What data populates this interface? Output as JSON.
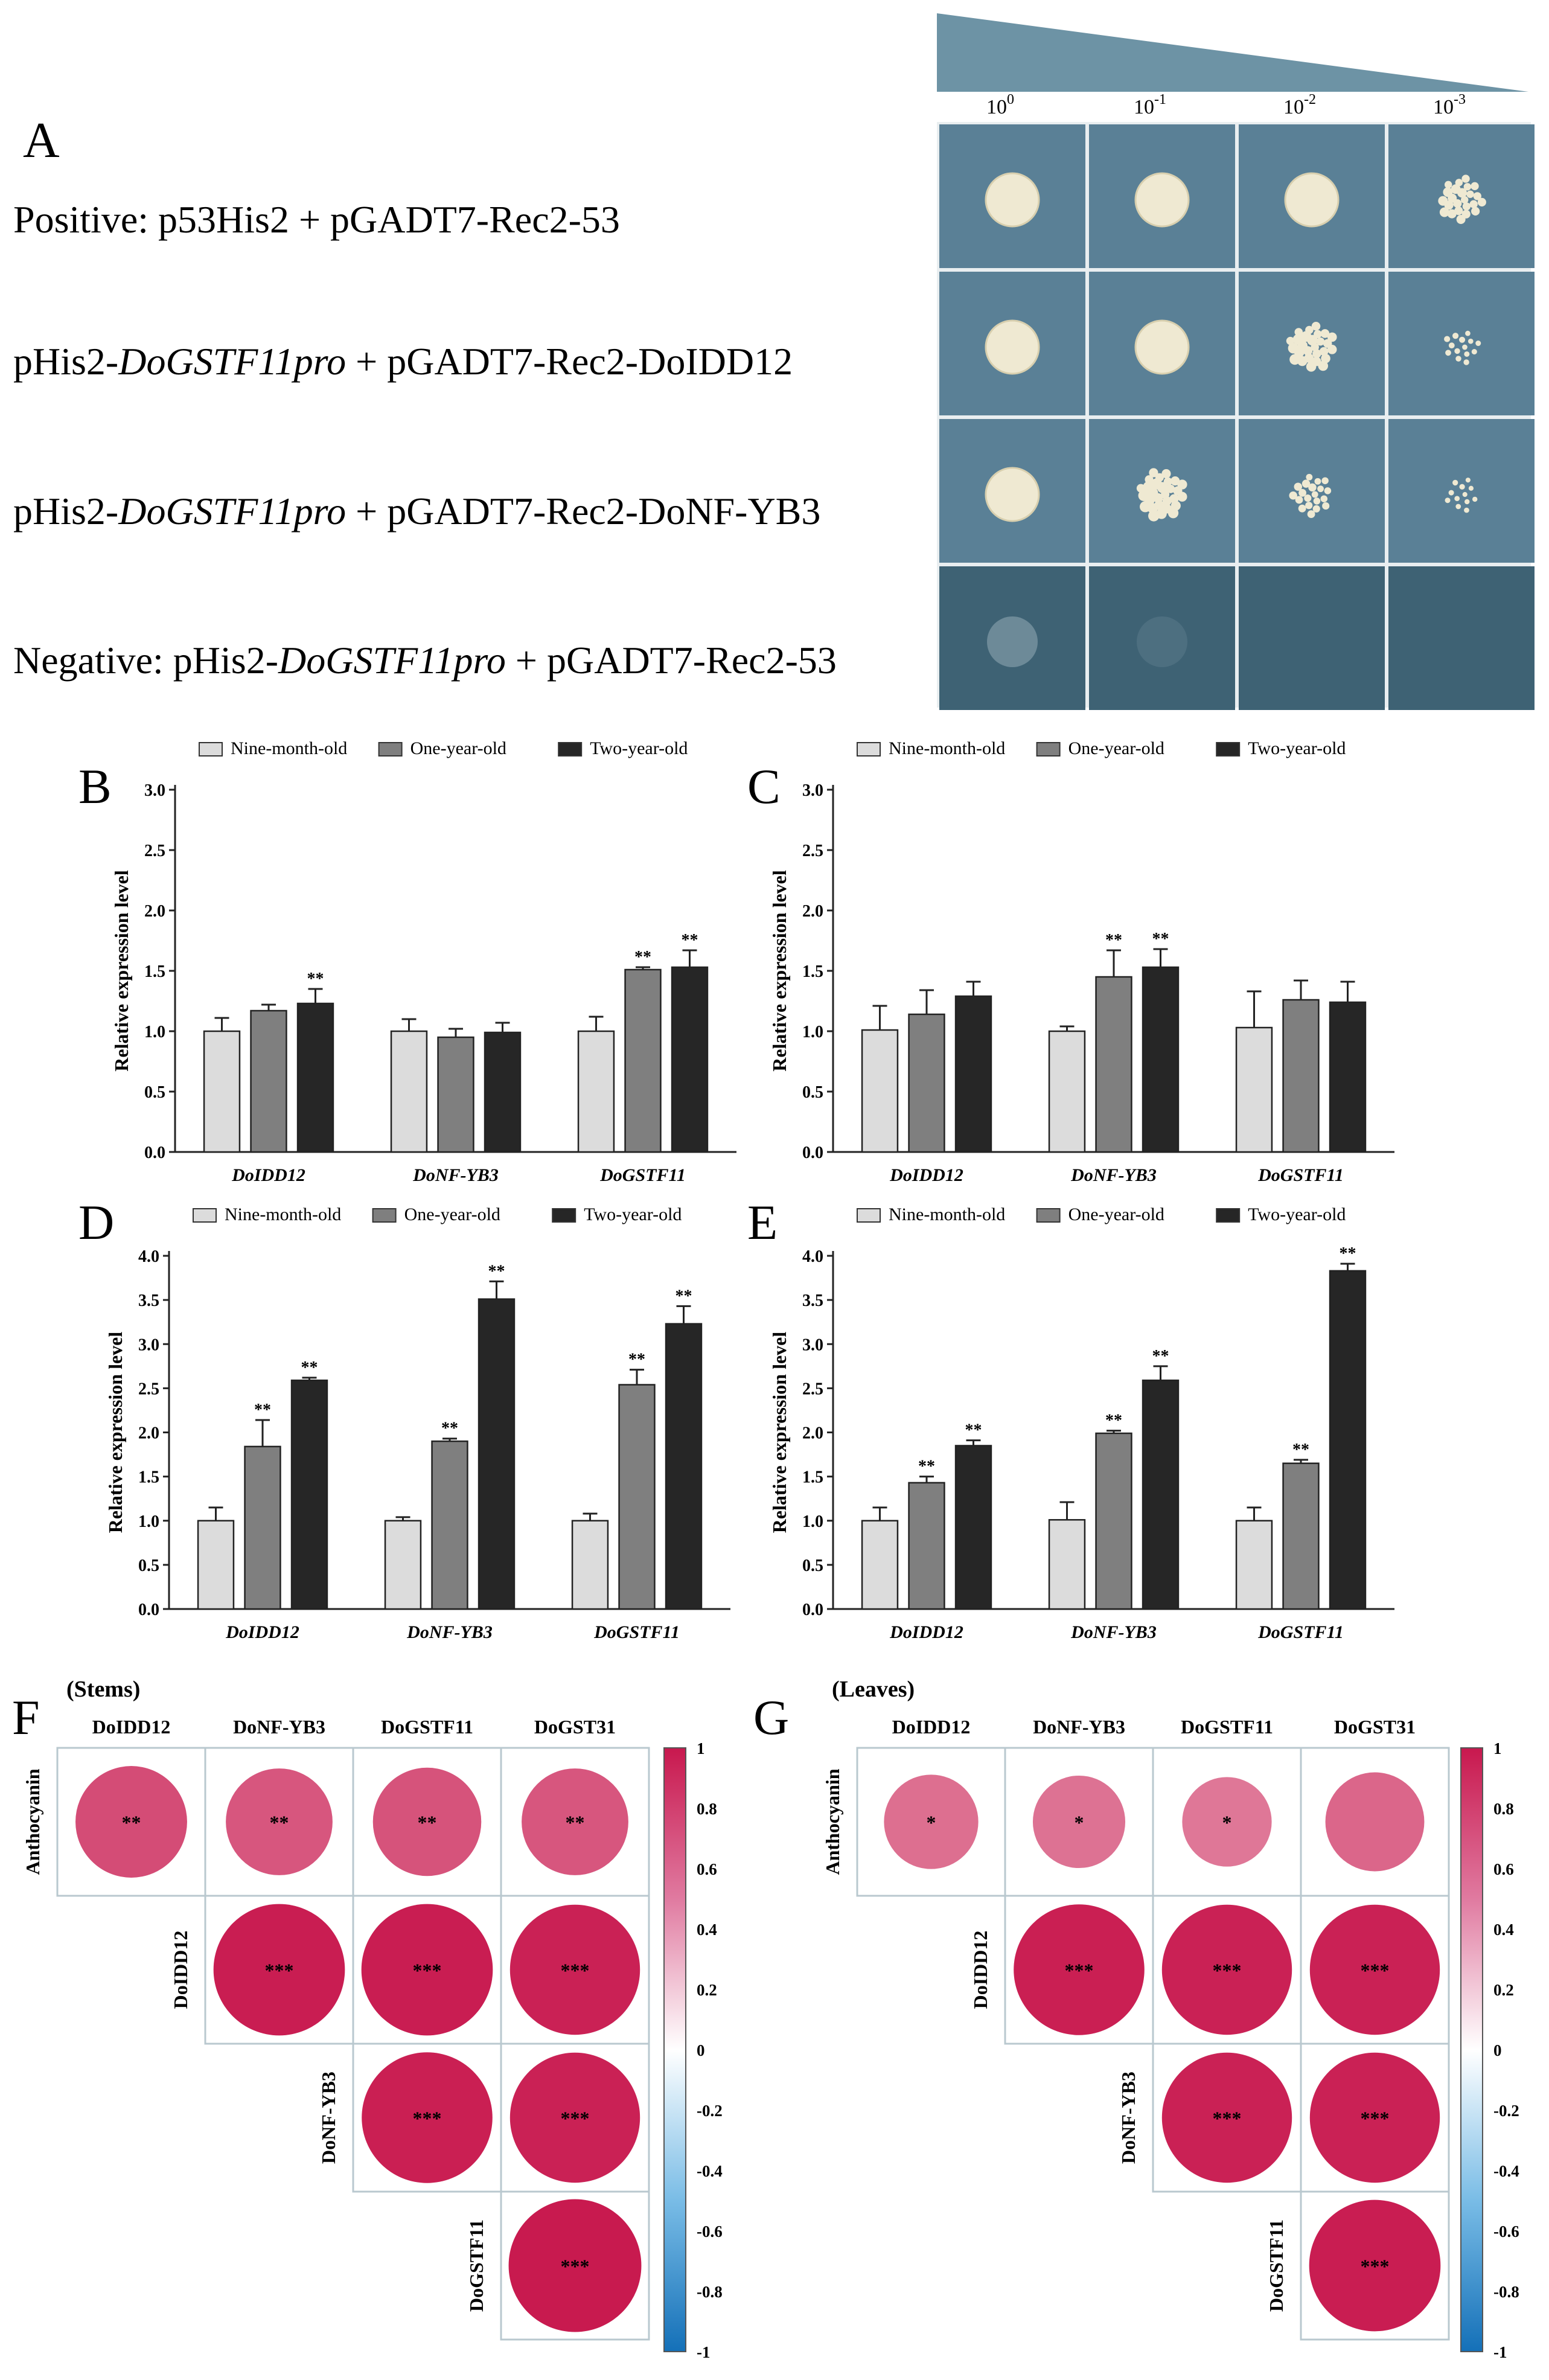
{
  "panelA": {
    "label": "A",
    "dilutions": [
      "10^0",
      "10^-1",
      "10^-2",
      "10^-3"
    ],
    "rows": [
      {
        "pre": "Positive: p53His2 + pGADT7-Rec2-53",
        "ital": "",
        "post": "",
        "growth": [
          1.0,
          0.95,
          0.85,
          0.6
        ]
      },
      {
        "pre": "pHis2-",
        "ital": "DoGSTF11pro",
        "post": " + pGADT7-Rec2-DoIDD12",
        "growth": [
          1.0,
          0.9,
          0.7,
          0.25
        ]
      },
      {
        "pre": "pHis2-",
        "ital": "DoGSTF11pro",
        "post": " + pGADT7-Rec2-DoNF-YB3",
        "growth": [
          0.95,
          0.75,
          0.45,
          0.2
        ]
      },
      {
        "pre": "Negative: pHis2-",
        "ital": "DoGSTF11pro",
        "post": " + pGADT7-Rec2-53",
        "growth": [
          0.15,
          0.05,
          0.0,
          0.0
        ]
      }
    ]
  },
  "chart_data": [
    {
      "panel": "B",
      "type": "bar",
      "ylabel": "Relative expression level",
      "ylim": [
        0,
        3.0
      ],
      "yticks": [
        "0.0",
        "0.5",
        "1.0",
        "1.5",
        "2.0",
        "2.5",
        "3.0"
      ],
      "categories": [
        "DoIDD12",
        "DoNF-YB3",
        "DoGSTF11"
      ],
      "series": [
        {
          "name": "Nine-month-old",
          "values": [
            1.0,
            1.0,
            1.0
          ],
          "err": [
            0.11,
            0.1,
            0.12
          ],
          "sig": [
            "",
            "",
            ""
          ]
        },
        {
          "name": "One-year-old",
          "values": [
            1.17,
            0.95,
            1.51
          ],
          "err": [
            0.05,
            0.07,
            0.02
          ],
          "sig": [
            "",
            "",
            "**"
          ]
        },
        {
          "name": "Two-year-old",
          "values": [
            1.23,
            0.99,
            1.53
          ],
          "err": [
            0.12,
            0.08,
            0.14
          ],
          "sig": [
            "**",
            "",
            "**"
          ]
        }
      ]
    },
    {
      "panel": "C",
      "type": "bar",
      "ylabel": "Relative expression level",
      "ylim": [
        0,
        3.0
      ],
      "yticks": [
        "0.0",
        "0.5",
        "1.0",
        "1.5",
        "2.0",
        "2.5",
        "3.0"
      ],
      "categories": [
        "DoIDD12",
        "DoNF-YB3",
        "DoGSTF11"
      ],
      "series": [
        {
          "name": "Nine-month-old",
          "values": [
            1.01,
            1.0,
            1.03
          ],
          "err": [
            0.2,
            0.04,
            0.3
          ],
          "sig": [
            "",
            "",
            ""
          ]
        },
        {
          "name": "One-year-old",
          "values": [
            1.14,
            1.45,
            1.26
          ],
          "err": [
            0.2,
            0.22,
            0.16
          ],
          "sig": [
            "",
            "**",
            ""
          ]
        },
        {
          "name": "Two-year-old",
          "values": [
            1.29,
            1.53,
            1.24
          ],
          "err": [
            0.12,
            0.15,
            0.17
          ],
          "sig": [
            "",
            "**",
            ""
          ]
        }
      ]
    },
    {
      "panel": "D",
      "type": "bar",
      "ylabel": "Relative expression level",
      "ylim": [
        0,
        4.0
      ],
      "yticks": [
        "0.0",
        "0.5",
        "1.0",
        "1.5",
        "2.0",
        "2.5",
        "3.0",
        "3.5",
        "4.0"
      ],
      "categories": [
        "DoIDD12",
        "DoNF-YB3",
        "DoGSTF11"
      ],
      "series": [
        {
          "name": "Nine-month-old",
          "values": [
            1.0,
            1.0,
            1.0
          ],
          "err": [
            0.15,
            0.04,
            0.08
          ],
          "sig": [
            "",
            "",
            ""
          ]
        },
        {
          "name": "One-year-old",
          "values": [
            1.84,
            1.9,
            2.54
          ],
          "err": [
            0.3,
            0.03,
            0.17
          ],
          "sig": [
            "**",
            "**",
            "**"
          ]
        },
        {
          "name": "Two-year-old",
          "values": [
            2.59,
            3.51,
            3.23
          ],
          "err": [
            0.03,
            0.2,
            0.2
          ],
          "sig": [
            "**",
            "**",
            "**"
          ]
        }
      ]
    },
    {
      "panel": "E",
      "type": "bar",
      "ylabel": "Relative expression level",
      "ylim": [
        0,
        4.0
      ],
      "yticks": [
        "0.0",
        "0.5",
        "1.0",
        "1.5",
        "2.0",
        "2.5",
        "3.0",
        "3.5",
        "4.0"
      ],
      "categories": [
        "DoIDD12",
        "DoNF-YB3",
        "DoGSTF11"
      ],
      "series": [
        {
          "name": "Nine-month-old",
          "values": [
            1.0,
            1.01,
            1.0
          ],
          "err": [
            0.15,
            0.2,
            0.15
          ],
          "sig": [
            "",
            "",
            ""
          ]
        },
        {
          "name": "One-year-old",
          "values": [
            1.43,
            1.99,
            1.65
          ],
          "err": [
            0.07,
            0.03,
            0.04
          ],
          "sig": [
            "**",
            "**",
            "**"
          ]
        },
        {
          "name": "Two-year-old",
          "values": [
            1.85,
            2.59,
            3.83
          ],
          "err": [
            0.06,
            0.16,
            0.08
          ],
          "sig": [
            "**",
            "**",
            "**"
          ]
        }
      ]
    },
    {
      "panel": "F",
      "type": "heatmap",
      "title": "(Stems)",
      "columns": [
        "DoIDD12",
        "DoNF-YB3",
        "DoGSTF11",
        "DoGST31"
      ],
      "rows": [
        "Anthocyanin",
        "DoIDD12",
        "DoNF-YB3",
        "DoGSTF11"
      ],
      "cells": [
        [
          {
            "r": 0.7,
            "sig": "**"
          },
          {
            "r": 0.64,
            "sig": "**"
          },
          {
            "r": 0.66,
            "sig": "**"
          },
          {
            "r": 0.64,
            "sig": "**"
          }
        ],
        [
          null,
          {
            "r": 0.97,
            "sig": "***"
          },
          {
            "r": 0.97,
            "sig": "***"
          },
          {
            "r": 0.95,
            "sig": "***"
          }
        ],
        [
          null,
          null,
          {
            "r": 0.96,
            "sig": "***"
          },
          {
            "r": 0.95,
            "sig": "***"
          }
        ],
        [
          null,
          null,
          null,
          {
            "r": 0.99,
            "sig": "***"
          }
        ]
      ],
      "colorbar": [
        "1",
        "0.8",
        "0.6",
        "0.4",
        "0.2",
        "0",
        "-0.2",
        "-0.4",
        "-0.6",
        "-0.8",
        "-1"
      ]
    },
    {
      "panel": "G",
      "type": "heatmap",
      "title": "(Leaves)",
      "columns": [
        "DoIDD12",
        "DoNF-YB3",
        "DoGSTF11",
        "DoGST31"
      ],
      "rows": [
        "Anthocyanin",
        "DoIDD12",
        "DoNF-YB3",
        "DoGSTF11"
      ],
      "cells": [
        [
          {
            "r": 0.5,
            "sig": "*"
          },
          {
            "r": 0.48,
            "sig": "*"
          },
          {
            "r": 0.45,
            "sig": "*"
          },
          {
            "r": 0.55,
            "sig": ""
          }
        ],
        [
          null,
          {
            "r": 0.96,
            "sig": "***"
          },
          {
            "r": 0.95,
            "sig": "***"
          },
          {
            "r": 0.95,
            "sig": "***"
          }
        ],
        [
          null,
          null,
          {
            "r": 0.95,
            "sig": "***"
          },
          {
            "r": 0.95,
            "sig": "***"
          }
        ],
        [
          null,
          null,
          null,
          {
            "r": 0.97,
            "sig": "***"
          }
        ]
      ],
      "colorbar": [
        "1",
        "0.8",
        "0.6",
        "0.4",
        "0.2",
        "0",
        "-0.2",
        "-0.4",
        "-0.6",
        "-0.8",
        "-1"
      ]
    }
  ],
  "colors": {
    "nine": "#dcdcdc",
    "one": "#7f7f7f",
    "two": "#262626",
    "plate": "#5a8096",
    "plateDark": "#3e6274",
    "colony": "#efe9d2",
    "posColor": "#c8184e",
    "negColor": "#1470b8"
  }
}
